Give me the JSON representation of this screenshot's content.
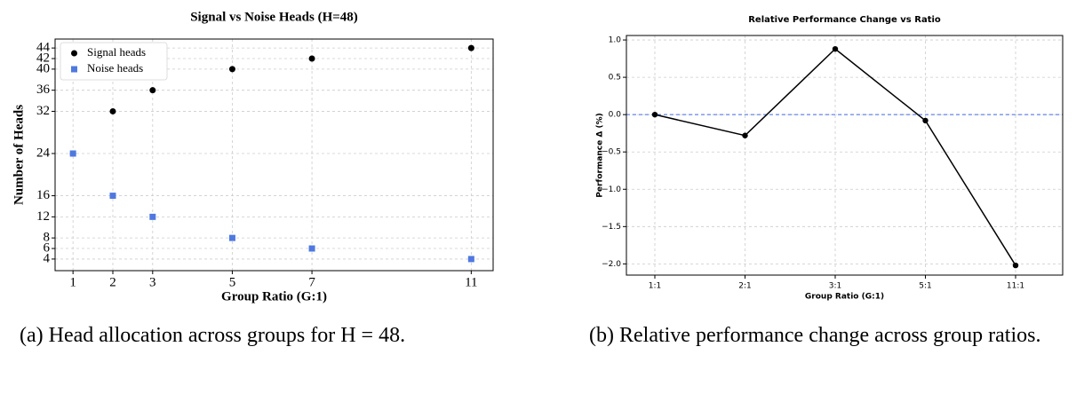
{
  "chart_data": [
    {
      "type": "scatter",
      "title": "Signal vs Noise Heads (H=48)",
      "x_label": "Group Ratio (G:1)",
      "y_label": "Number of Heads",
      "x": [
        1,
        2,
        3,
        5,
        7,
        11
      ],
      "series": [
        {
          "name": "Signal heads",
          "color": "#000000",
          "marker": "circle",
          "values": [
            24,
            32,
            36,
            40,
            42,
            44
          ]
        },
        {
          "name": "Noise heads",
          "color": "#4f79e0",
          "marker": "square",
          "values": [
            24,
            16,
            12,
            8,
            6,
            4
          ]
        }
      ],
      "xlim": [
        0.55,
        11.55
      ],
      "xticks": [
        1,
        2,
        3,
        5,
        7,
        11
      ],
      "ylim": [
        1.8,
        45.7
      ],
      "yticks": [
        4,
        6,
        8,
        12,
        16,
        24,
        32,
        36,
        40,
        42,
        44
      ],
      "grid": true,
      "legend": "upper left"
    },
    {
      "type": "line",
      "title": "Relative Performance Change vs Ratio",
      "x_label": "Group Ratio (G:1)",
      "y_label": "Performance Δ (%)",
      "categories": [
        "1:1",
        "2:1",
        "3:1",
        "5:1",
        "11:1"
      ],
      "values": [
        0,
        -0.28,
        0.88,
        -0.08,
        -2.02
      ],
      "color": "#000000",
      "ylim": [
        -2.15,
        1.06
      ],
      "yticks": [
        {
          "value": 1,
          "label": "1.0"
        },
        {
          "value": 0.5,
          "label": "0.5"
        },
        {
          "value": 0,
          "label": "0.0"
        },
        {
          "value": -0.5,
          "label": "−0.5"
        },
        {
          "value": -1,
          "label": "−1.0"
        },
        {
          "value": -1.5,
          "label": "−1.5"
        },
        {
          "value": -2,
          "label": "−2.0"
        }
      ],
      "reference_line": {
        "value": 0,
        "color": "#4169e1"
      },
      "grid": true
    }
  ],
  "captions": [
    "(a) Head allocation across groups for H = 48.",
    "(b) Relative performance change across group ratios."
  ]
}
